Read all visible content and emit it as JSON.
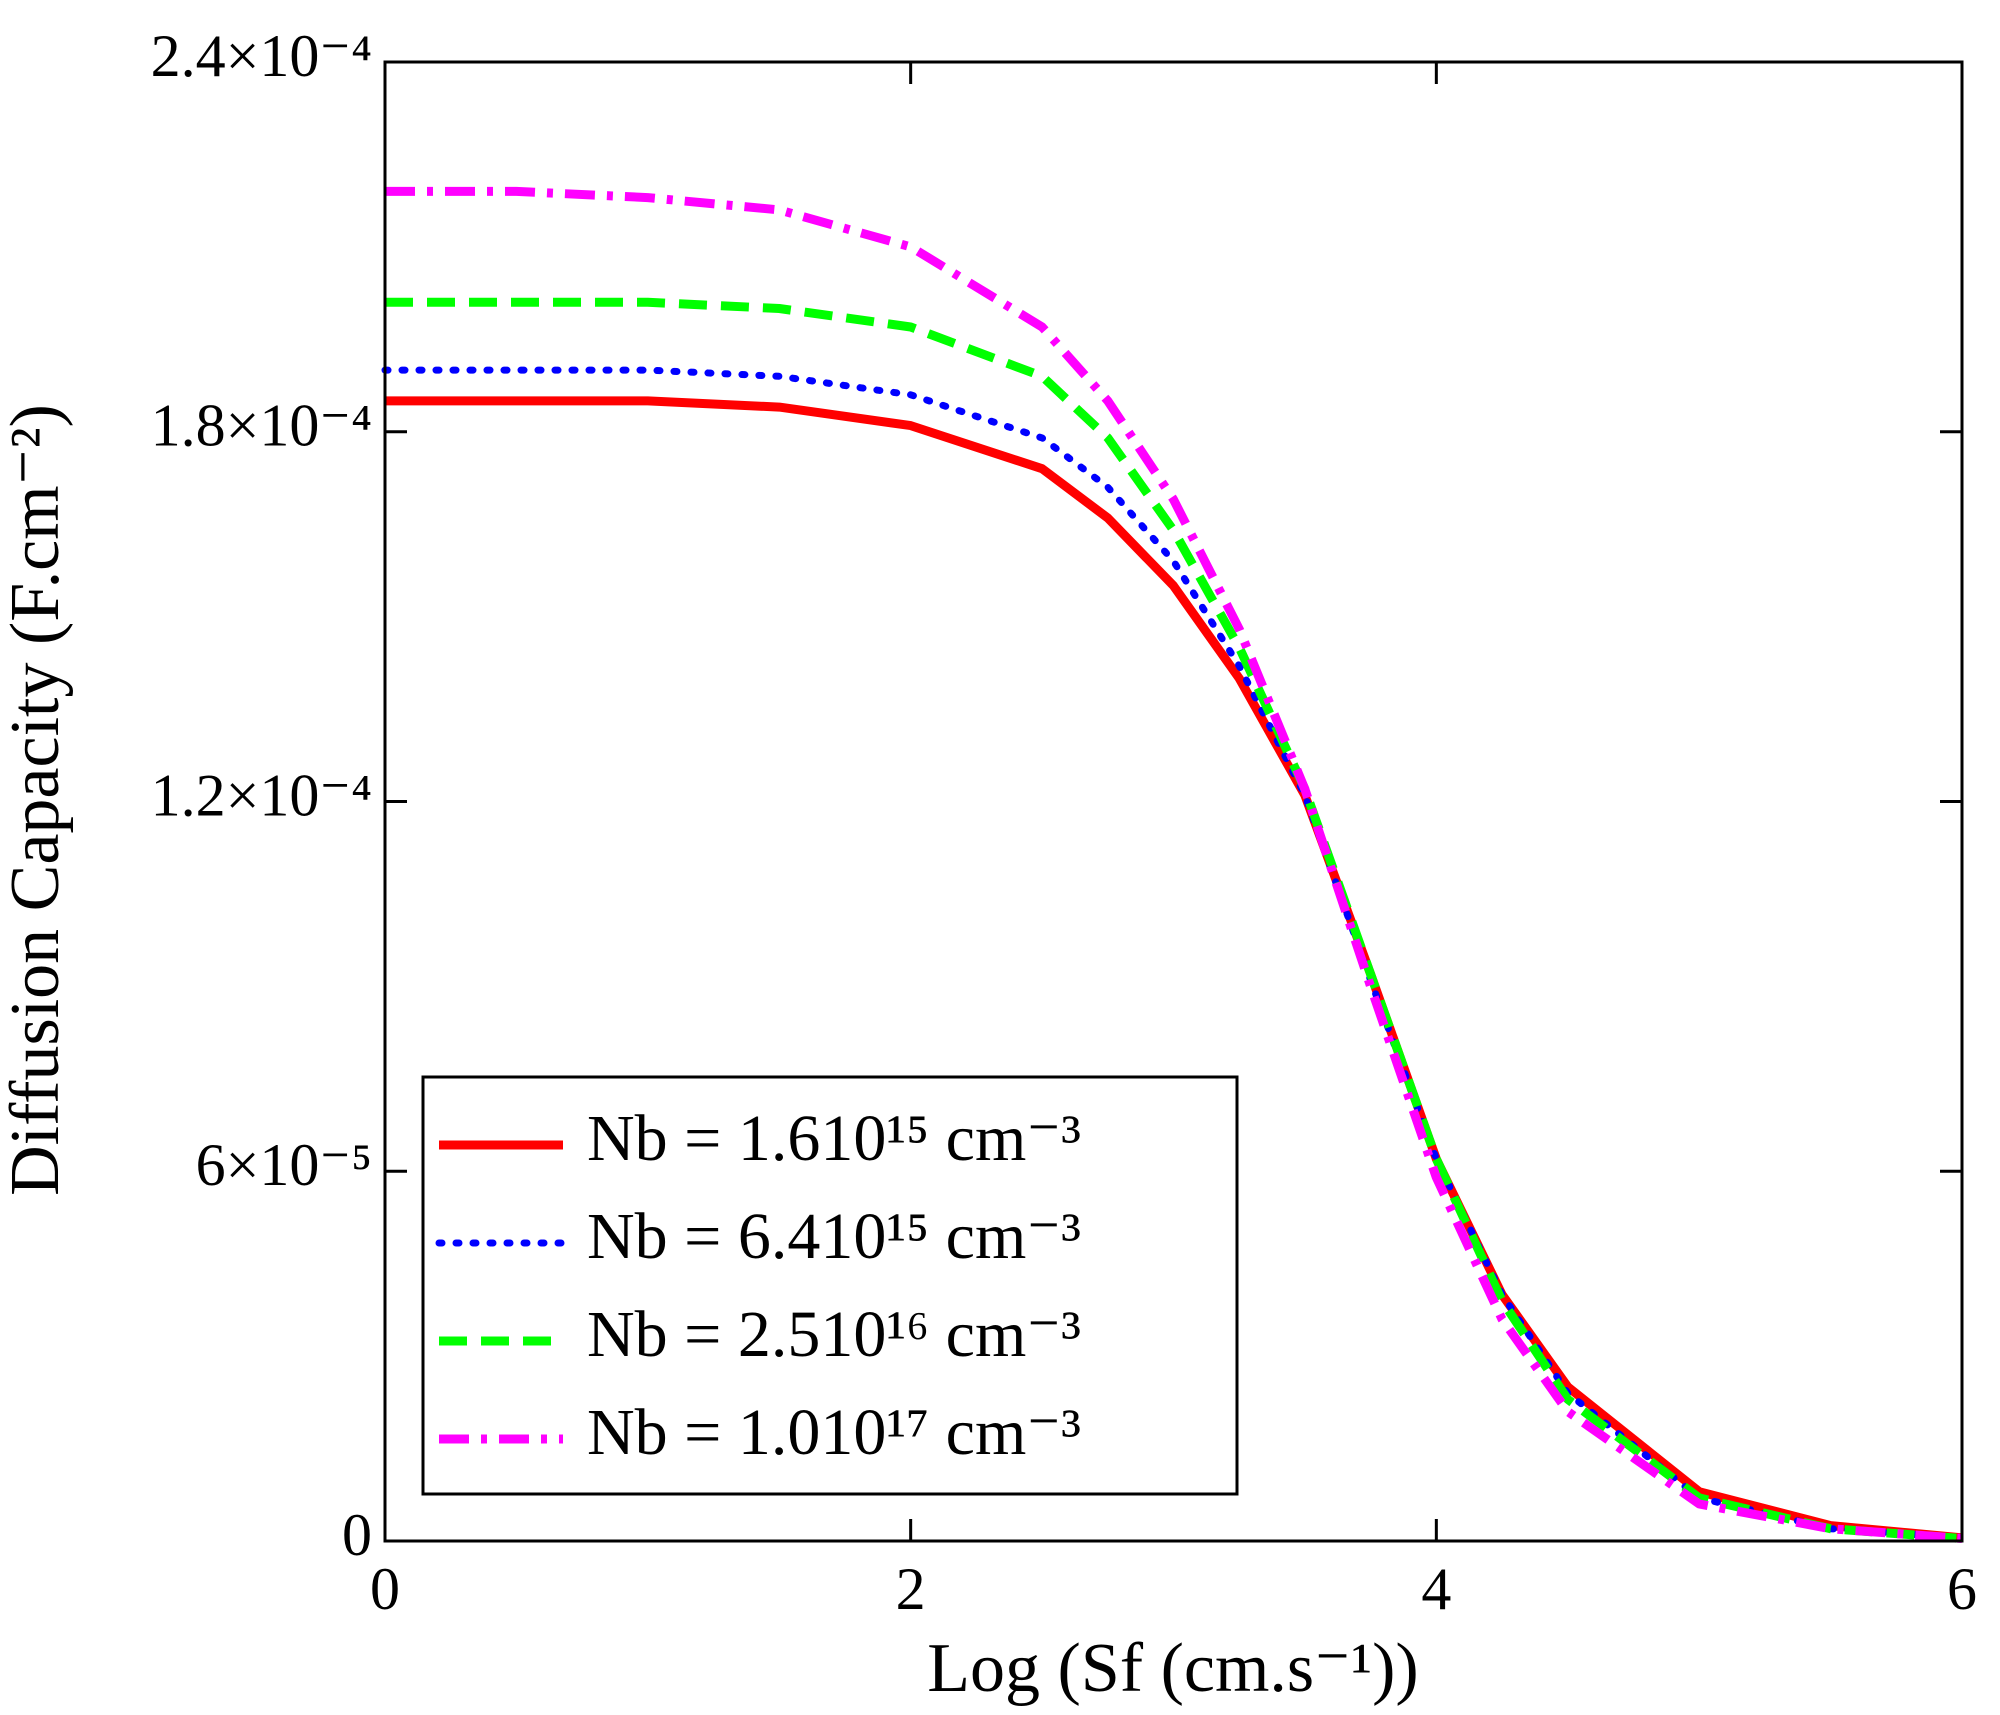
{
  "chart_data": {
    "type": "line",
    "xlabel": "Log (Sf (cm.s⁻¹))",
    "ylabel": "Diffusion Capacity (F.cm⁻²)",
    "x": [
      0,
      0.5,
      1,
      1.5,
      2,
      2.5,
      2.75,
      3,
      3.25,
      3.5,
      3.75,
      4,
      4.25,
      4.5,
      5,
      5.5,
      6
    ],
    "series": [
      {
        "name": "Nb = 1.610¹⁵ cm⁻³",
        "color": "#ff0000",
        "style": "solid",
        "values": [
          0.000185,
          0.000185,
          0.000185,
          0.000184,
          0.000181,
          0.000174,
          0.000166,
          0.000155,
          0.00014,
          0.000121,
          9.2e-05,
          6.2e-05,
          4e-05,
          2.5e-05,
          8e-06,
          2.5e-06,
          5e-07
        ]
      },
      {
        "name": "Nb = 6.410¹⁵ cm⁻³",
        "color": "#0000ff",
        "style": "dotted",
        "values": [
          0.00019,
          0.00019,
          0.00019,
          0.000189,
          0.000186,
          0.000179,
          0.000171,
          0.000159,
          0.000142,
          0.000121,
          9.1e-05,
          6.2e-05,
          4e-05,
          2.4e-05,
          7e-06,
          2e-06,
          5e-07
        ]
      },
      {
        "name": "Nb = 2.510¹⁶ cm⁻³",
        "color": "#00ff00",
        "style": "dashed",
        "values": [
          0.000201,
          0.000201,
          0.000201,
          0.0002,
          0.000197,
          0.000189,
          0.000179,
          0.000164,
          0.000145,
          0.000122,
          9.2e-05,
          6.2e-05,
          3.9e-05,
          2.3e-05,
          7e-06,
          2e-06,
          4e-07
        ]
      },
      {
        "name": "Nb = 1.010¹⁷ cm⁻³",
        "color": "#ff00ff",
        "style": "dashdot",
        "values": [
          0.000219,
          0.000219,
          0.000218,
          0.000216,
          0.00021,
          0.000197,
          0.000185,
          0.000169,
          0.000148,
          0.000122,
          9e-05,
          5.9e-05,
          3.6e-05,
          2.1e-05,
          6e-06,
          2e-06,
          4e-07
        ]
      }
    ],
    "xlim": [
      0,
      6
    ],
    "xticks": [
      0,
      2,
      4,
      6
    ],
    "ylim": [
      0,
      0.00024
    ],
    "yticks": [
      0,
      {
        "value": 6e-05,
        "label": "6×10⁻⁵"
      },
      {
        "value": 0.00012,
        "label": "1.2×10⁻⁴"
      },
      {
        "value": 0.00018,
        "label": "1.8×10⁻⁴"
      },
      {
        "value": 0.00024,
        "label": "2.4×10⁻⁴"
      }
    ],
    "grid": false,
    "legend": "lower left"
  }
}
